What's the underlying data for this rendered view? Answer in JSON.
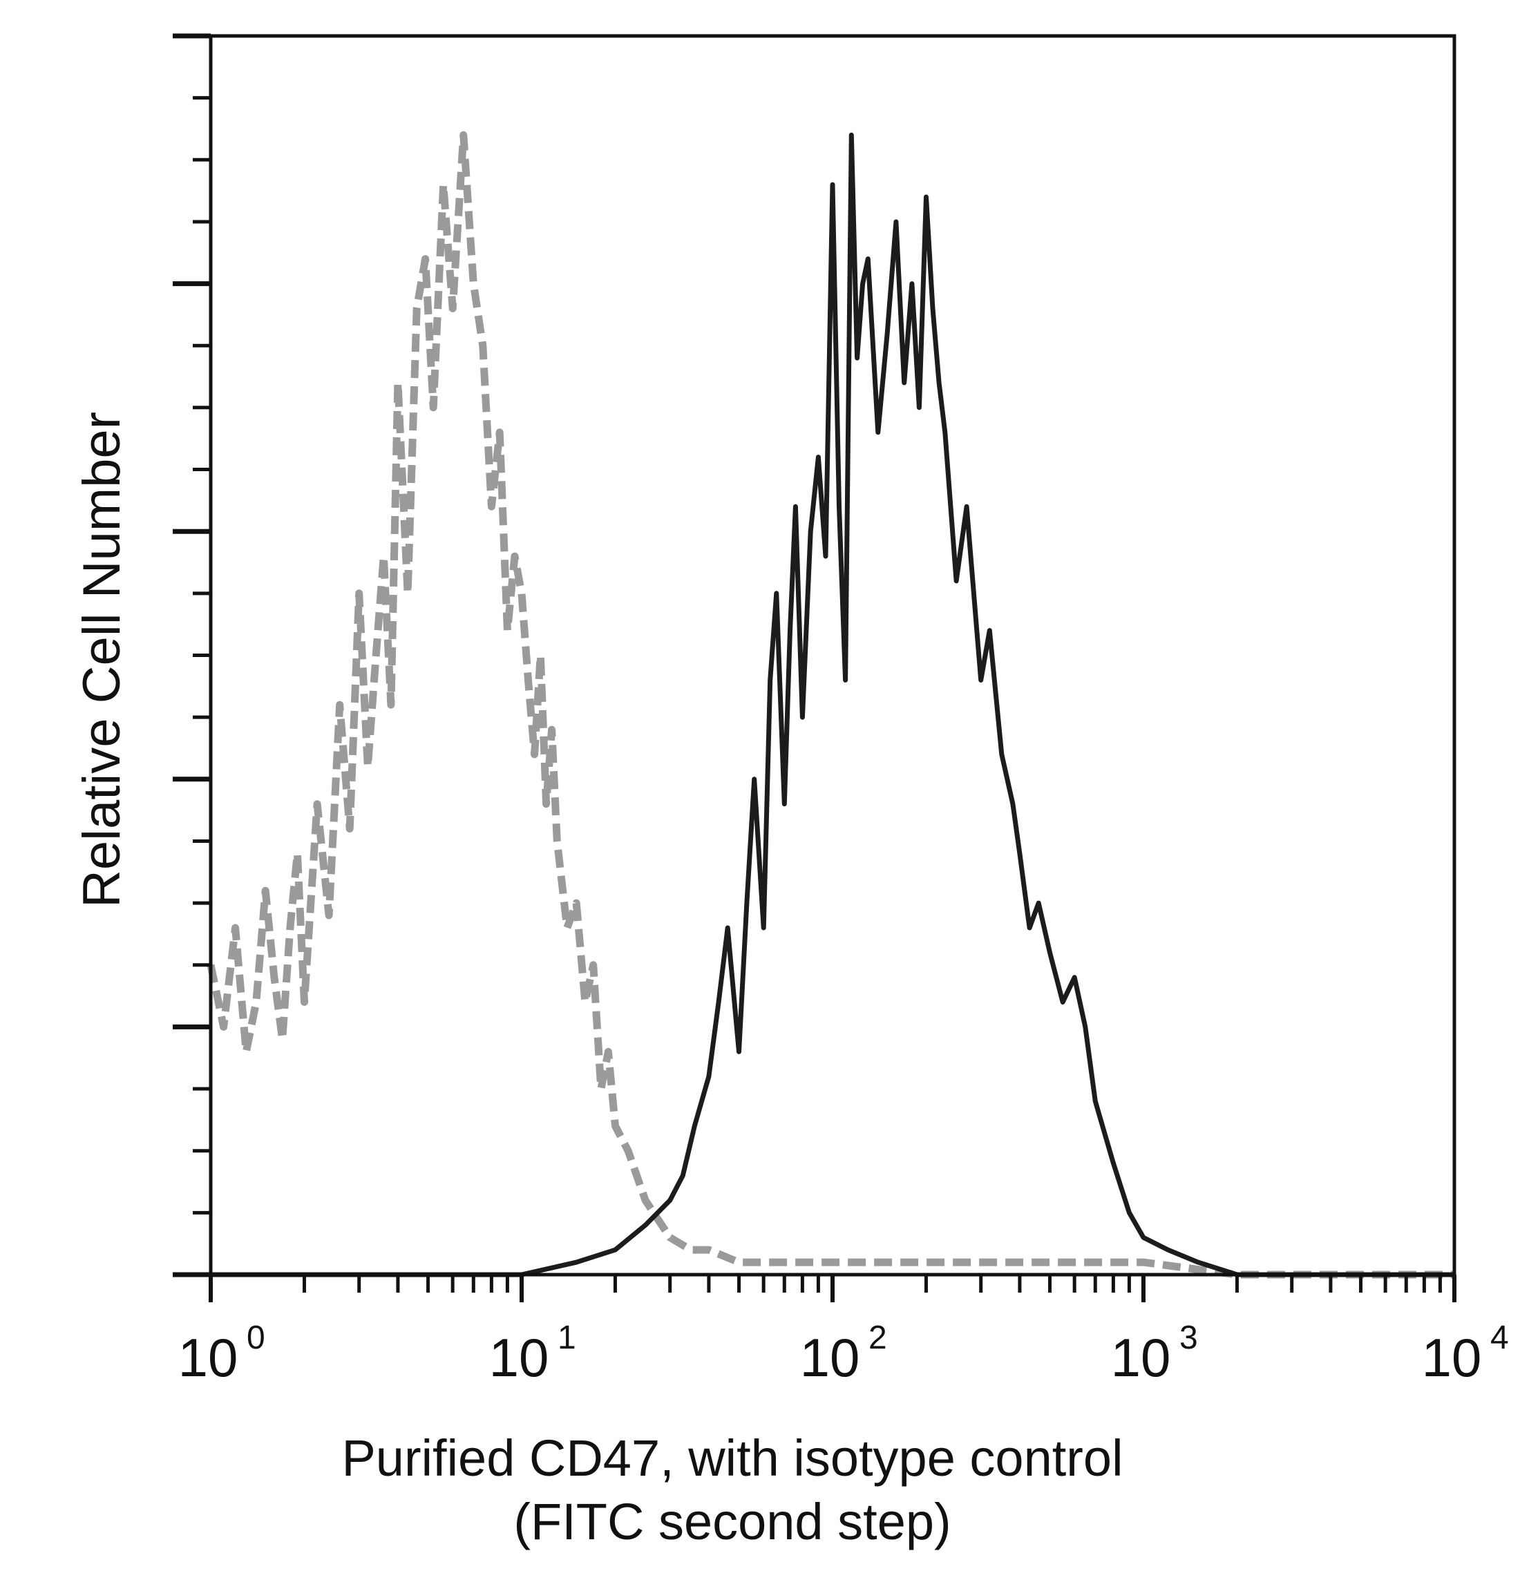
{
  "chart_data": {
    "type": "line",
    "ylabel": "Relative Cell Number",
    "xlabel_lines": [
      "Purified CD47, with isotype control",
      "(FITC second step)"
    ],
    "xscale": "log",
    "xlim": [
      1,
      10000
    ],
    "ylim": [
      0,
      100
    ],
    "grid": false,
    "legend": "none",
    "x_ticks": [
      {
        "base": "10",
        "exp": "0",
        "value": 1
      },
      {
        "base": "10",
        "exp": "1",
        "value": 10
      },
      {
        "base": "10",
        "exp": "2",
        "value": 100
      },
      {
        "base": "10",
        "exp": "3",
        "value": 1000
      },
      {
        "base": "10",
        "exp": "4",
        "value": 10000
      }
    ],
    "series": [
      {
        "style": "gray-dashed",
        "color": "#9a9a9a",
        "x": [
          1.0,
          1.1,
          1.2,
          1.3,
          1.4,
          1.5,
          1.6,
          1.7,
          1.8,
          1.9,
          2.0,
          2.2,
          2.4,
          2.6,
          2.8,
          3.0,
          3.2,
          3.4,
          3.6,
          3.8,
          4.0,
          4.3,
          4.6,
          4.9,
          5.2,
          5.6,
          6.0,
          6.5,
          7.0,
          7.5,
          8.0,
          8.5,
          9.0,
          9.5,
          10.0,
          10.5,
          11.0,
          11.5,
          12.0,
          12.5,
          13.0,
          14.0,
          15.0,
          16.0,
          17.0,
          18.0,
          19.0,
          20.0,
          22.0,
          25.0,
          30.0,
          35.0,
          40.0,
          50.0,
          70.0,
          100.0,
          200.0,
          500.0,
          1000.0,
          2000.0,
          5000.0,
          10000.0
        ],
        "values": [
          25,
          20,
          28,
          18,
          22,
          31,
          24,
          19,
          28,
          34,
          22,
          38,
          29,
          46,
          36,
          55,
          41,
          50,
          58,
          46,
          72,
          55,
          78,
          82,
          70,
          88,
          78,
          92,
          80,
          75,
          62,
          68,
          52,
          58,
          55,
          48,
          42,
          50,
          38,
          44,
          35,
          28,
          30,
          22,
          25,
          15,
          18,
          12,
          10,
          6,
          3,
          2,
          2,
          1,
          1,
          1,
          1,
          1,
          1,
          0,
          0,
          0
        ]
      },
      {
        "style": "black-solid",
        "color": "#1c1c1c",
        "x": [
          1.0,
          2.0,
          5.0,
          10.0,
          15.0,
          20.0,
          25.0,
          30.0,
          33.0,
          36.0,
          40.0,
          43.0,
          46.0,
          50.0,
          53.0,
          56.0,
          60.0,
          63.0,
          66.0,
          70.0,
          73.0,
          76.0,
          80.0,
          85.0,
          90.0,
          95.0,
          100.0,
          105.0,
          110.0,
          115.0,
          120.0,
          125.0,
          130.0,
          140.0,
          150.0,
          160.0,
          170.0,
          180.0,
          190.0,
          200.0,
          210.0,
          220.0,
          230.0,
          250.0,
          270.0,
          300.0,
          320.0,
          350.0,
          380.0,
          400.0,
          430.0,
          460.0,
          500.0,
          550.0,
          600.0,
          650.0,
          700.0,
          800.0,
          900.0,
          1000.0,
          1200.0,
          1500.0,
          2000.0,
          5000.0,
          10000.0
        ],
        "values": [
          0,
          0,
          0,
          0,
          1,
          2,
          4,
          6,
          8,
          12,
          16,
          22,
          28,
          18,
          30,
          40,
          28,
          48,
          55,
          38,
          52,
          62,
          45,
          60,
          66,
          58,
          88,
          62,
          48,
          92,
          74,
          80,
          82,
          68,
          76,
          85,
          72,
          80,
          70,
          87,
          78,
          72,
          68,
          56,
          62,
          48,
          52,
          42,
          38,
          34,
          28,
          30,
          26,
          22,
          24,
          20,
          14,
          9,
          5,
          3,
          2,
          1,
          0,
          0,
          0
        ]
      }
    ]
  }
}
